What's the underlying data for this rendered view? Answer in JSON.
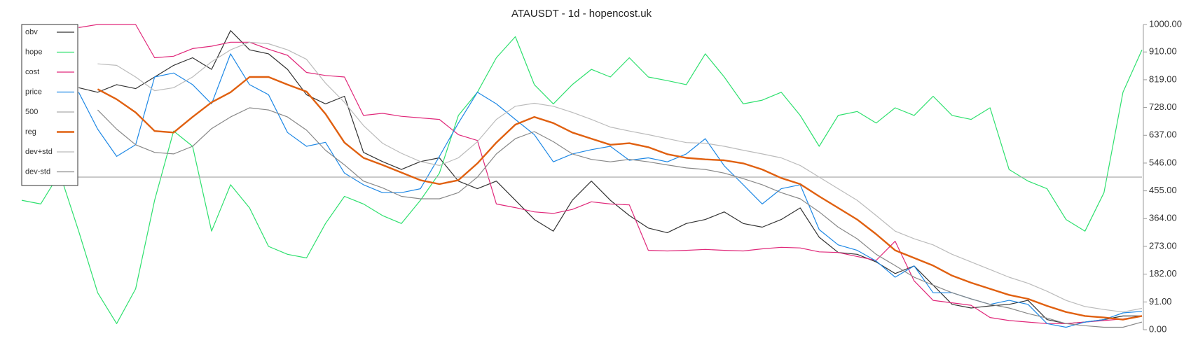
{
  "chart_data": {
    "type": "line",
    "title": "ATAUSDT - 1d - hopencost.uk",
    "ylim": [
      0,
      1000
    ],
    "yticks": [
      {
        "value": 0,
        "label": "0.00"
      },
      {
        "value": 91,
        "label": "91.00"
      },
      {
        "value": 182,
        "label": "182.00"
      },
      {
        "value": 273,
        "label": "273.00"
      },
      {
        "value": 364,
        "label": "364.00"
      },
      {
        "value": 455,
        "label": "455.00"
      },
      {
        "value": 546,
        "label": "546.00"
      },
      {
        "value": 637,
        "label": "637.00"
      },
      {
        "value": 728,
        "label": "728.00"
      },
      {
        "value": 819,
        "label": "819.00"
      },
      {
        "value": 910,
        "label": "910.00"
      },
      {
        "value": 1000,
        "label": "1000.00"
      }
    ],
    "grid": false,
    "legend": "upper left",
    "series": [
      {
        "name": "obv",
        "color": "#333333",
        "values": [
          null,
          null,
          null,
          793,
          778,
          803,
          790,
          828,
          866,
          891,
          853,
          980,
          917,
          904,
          853,
          770,
          740,
          765,
          581,
          551,
          525,
          551,
          563,
          487,
          462,
          487,
          424,
          361,
          323,
          424,
          487,
          424,
          374,
          333,
          318,
          348,
          361,
          386,
          348,
          336,
          361,
          399,
          303,
          253,
          247,
          222,
          184,
          209,
          146,
          83,
          71,
          78,
          83,
          96,
          33,
          20,
          25,
          33,
          45,
          45
        ]
      },
      {
        "name": "hope",
        "color": "#2ee06e",
        "values": [
          424,
          412,
          513,
          323,
          121,
          20,
          134,
          424,
          651,
          601,
          323,
          475,
          399,
          273,
          247,
          235,
          348,
          437,
          412,
          374,
          348,
          424,
          513,
          702,
          778,
          891,
          960,
          803,
          740,
          803,
          853,
          828,
          891,
          828,
          816,
          803,
          904,
          828,
          740,
          752,
          778,
          702,
          601,
          702,
          715,
          677,
          727,
          702,
          765,
          702,
          689,
          727,
          525,
          487,
          462,
          361,
          323,
          449,
          778,
          917
        ]
      },
      {
        "name": "cost",
        "color": "#e0287a",
        "values": [
          null,
          null,
          null,
          990,
          1000,
          1000,
          1000,
          891,
          896,
          921,
          929,
          942,
          942,
          919,
          899,
          843,
          833,
          828,
          702,
          709,
          699,
          694,
          689,
          639,
          620,
          412,
          400,
          386,
          381,
          394,
          419,
          412,
          409,
          260,
          258,
          260,
          263,
          260,
          258,
          265,
          270,
          268,
          255,
          253,
          240,
          227,
          290,
          160,
          96,
          88,
          80,
          40,
          30,
          25,
          20,
          20,
          25,
          30,
          35,
          45
        ]
      },
      {
        "name": "price",
        "color": "#1e88e5",
        "values": [
          null,
          null,
          null,
          778,
          657,
          568,
          606,
          828,
          841,
          803,
          740,
          904,
          803,
          770,
          646,
          601,
          614,
          513,
          475,
          449,
          449,
          462,
          568,
          677,
          778,
          740,
          689,
          639,
          550,
          576,
          590,
          601,
          555,
          563,
          550,
          576,
          626,
          537,
          475,
          412,
          462,
          475,
          328,
          278,
          260,
          225,
          172,
          209,
          121,
          121,
          101,
          83,
          96,
          83,
          20,
          8,
          25,
          33,
          55,
          60
        ]
      },
      {
        "name": "500",
        "color": "#aaaaaa",
        "values": [
          500,
          500,
          500,
          500,
          500,
          500,
          500,
          500,
          500,
          500,
          500,
          500,
          500,
          500,
          500,
          500,
          500,
          500,
          500,
          500,
          500,
          500,
          500,
          500,
          500,
          500,
          500,
          500,
          500,
          500,
          500,
          500,
          500,
          500,
          500,
          500,
          500,
          500,
          500,
          500,
          500,
          500,
          500,
          500,
          500,
          500,
          500,
          500,
          500,
          500,
          500,
          500,
          500,
          500,
          500,
          500,
          500,
          500,
          500,
          500
        ]
      },
      {
        "name": "reg",
        "color": "#e06010",
        "values": [
          null,
          null,
          null,
          null,
          788,
          755,
          712,
          651,
          646,
          697,
          745,
          778,
          828,
          828,
          803,
          780,
          707,
          613,
          563,
          540,
          515,
          490,
          477,
          490,
          545,
          613,
          672,
          697,
          677,
          646,
          626,
          606,
          611,
          598,
          575,
          563,
          558,
          555,
          545,
          525,
          497,
          477,
          437,
          399,
          361,
          313,
          260,
          235,
          210,
          177,
          154,
          134,
          114,
          101,
          78,
          58,
          45,
          40,
          33,
          45
        ]
      },
      {
        "name": "dev+std",
        "color": "#bbbbbb",
        "values": [
          null,
          null,
          null,
          null,
          871,
          866,
          828,
          783,
          793,
          828,
          878,
          917,
          942,
          937,
          917,
          886,
          808,
          745,
          669,
          611,
          578,
          551,
          538,
          563,
          616,
          689,
          732,
          742,
          732,
          712,
          689,
          664,
          651,
          639,
          626,
          613,
          611,
          601,
          588,
          576,
          563,
          538,
          500,
          462,
          424,
          374,
          323,
          298,
          278,
          247,
          222,
          197,
          172,
          152,
          126,
          96,
          76,
          66,
          58,
          70
        ]
      },
      {
        "name": "dev-std",
        "color": "#888888",
        "values": [
          null,
          null,
          null,
          null,
          720,
          657,
          606,
          581,
          576,
          601,
          659,
          697,
          727,
          720,
          697,
          654,
          588,
          540,
          487,
          465,
          437,
          429,
          429,
          449,
          500,
          576,
          626,
          649,
          616,
          576,
          558,
          550,
          558,
          550,
          540,
          530,
          525,
          513,
          495,
          475,
          449,
          429,
          386,
          336,
          298,
          247,
          210,
          172,
          146,
          121,
          101,
          83,
          71,
          53,
          38,
          20,
          13,
          8,
          8,
          25
        ]
      }
    ]
  }
}
